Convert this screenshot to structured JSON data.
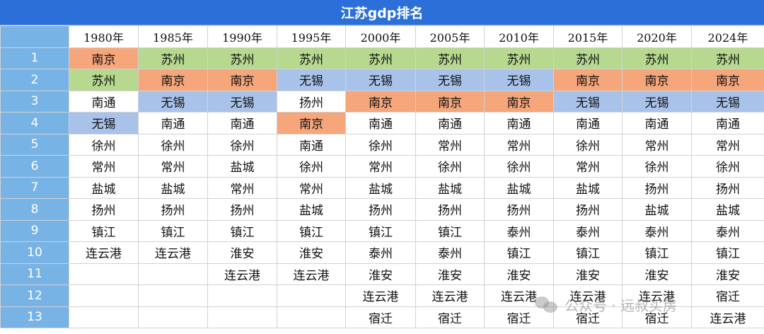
{
  "title": "江苏gdp排名",
  "years": [
    "1980年",
    "1985年",
    "1990年",
    "1995年",
    "2000年",
    "2005年",
    "2010年",
    "2015年",
    "2020年",
    "2024年"
  ],
  "ranks": [
    "1",
    "2",
    "3",
    "4",
    "5",
    "6",
    "7",
    "8",
    "9",
    "10",
    "11",
    "12",
    "13"
  ],
  "cells": [
    [
      "南京",
      "苏州",
      "苏州",
      "苏州",
      "苏州",
      "苏州",
      "苏州",
      "苏州",
      "苏州",
      "苏州"
    ],
    [
      "苏州",
      "南京",
      "南京",
      "无锡",
      "无锡",
      "无锡",
      "无锡",
      "南京",
      "南京",
      "南京"
    ],
    [
      "南通",
      "无锡",
      "无锡",
      "扬州",
      "南京",
      "南京",
      "南京",
      "无锡",
      "无锡",
      "无锡"
    ],
    [
      "无锡",
      "南通",
      "南通",
      "南京",
      "南通",
      "南通",
      "南通",
      "南通",
      "南通",
      "南通"
    ],
    [
      "徐州",
      "徐州",
      "徐州",
      "南通",
      "徐州",
      "常州",
      "常州",
      "徐州",
      "常州",
      "常州"
    ],
    [
      "常州",
      "常州",
      "盐城",
      "徐州",
      "常州",
      "徐州",
      "徐州",
      "常州",
      "徐州",
      "徐州"
    ],
    [
      "盐城",
      "盐城",
      "常州",
      "常州",
      "盐城",
      "盐城",
      "盐城",
      "盐城",
      "扬州",
      "扬州"
    ],
    [
      "扬州",
      "扬州",
      "扬州",
      "盐城",
      "扬州",
      "扬州",
      "扬州",
      "扬州",
      "盐城",
      "盐城"
    ],
    [
      "镇江",
      "镇江",
      "镇江",
      "镇江",
      "镇江",
      "镇江",
      "泰州",
      "泰州",
      "泰州",
      "泰州"
    ],
    [
      "连云港",
      "连云港",
      "淮安",
      "淮安",
      "泰州",
      "泰州",
      "镇江",
      "镇江",
      "镇江",
      "镇江"
    ],
    [
      "",
      "",
      "连云港",
      "连云港",
      "淮安",
      "淮安",
      "淮安",
      "淮安",
      "淮安",
      "淮安"
    ],
    [
      "",
      "",
      "",
      "",
      "连云港",
      "连云港",
      "连云港",
      "连云港",
      "连云港",
      "宿迁"
    ],
    [
      "",
      "",
      "",
      "",
      "宿迁",
      "宿迁",
      "宿迁",
      "宿迁",
      "宿迁",
      "连云港"
    ]
  ],
  "highlight_colors": {
    "green": "#b6d88f",
    "orange": "#f5a67a",
    "blue": "#a9c2ea"
  },
  "highlights": [
    [
      "orange",
      "green",
      "green",
      "green",
      "green",
      "green",
      "green",
      "green",
      "green",
      "green"
    ],
    [
      "green",
      "orange",
      "orange",
      "blue",
      "blue",
      "blue",
      "blue",
      "orange",
      "orange",
      "orange"
    ],
    [
      "",
      "blue",
      "blue",
      "",
      "orange",
      "orange",
      "orange",
      "blue",
      "blue",
      "blue"
    ],
    [
      "blue",
      "",
      "",
      "orange",
      "",
      "",
      "",
      "",
      "",
      ""
    ]
  ],
  "watermark": {
    "text": "公众号 · 远叔买房",
    "icon": "wechat-icon"
  }
}
